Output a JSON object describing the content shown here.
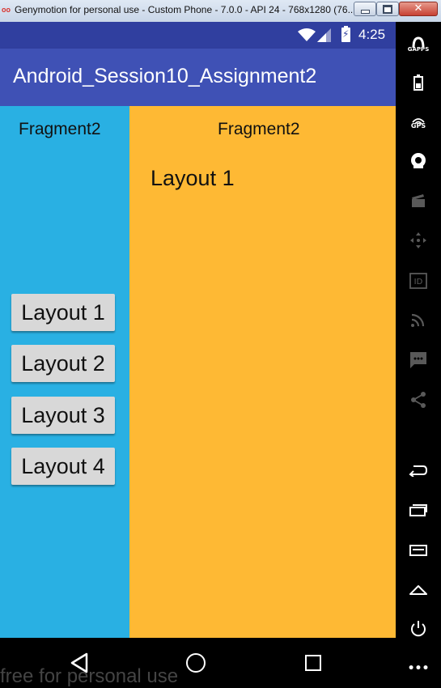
{
  "window": {
    "app_icon": "oo",
    "title": "Genymotion for personal use - Custom Phone - 7.0.0 - API 24 - 768x1280 (76...",
    "minimize_icon": "minimize-icon",
    "maximize_icon": "maximize-icon",
    "close_glyph": "✕"
  },
  "status_bar": {
    "time": "4:25",
    "battery_glyph": "⚡"
  },
  "app_bar": {
    "title": "Android_Session10_Assignment2"
  },
  "left_fragment": {
    "label": "Fragment2",
    "background": "#29b0e3",
    "buttons": [
      {
        "label": "Layout 1"
      },
      {
        "label": "Layout 2"
      },
      {
        "label": "Layout 3"
      },
      {
        "label": "Layout 4"
      }
    ]
  },
  "right_fragment": {
    "label": "Fragment2",
    "layout_text": "Layout 1",
    "background": "#feb934"
  },
  "watermark": "free for personal use",
  "sidebar": {
    "gapps_label": "GAPPS",
    "gps_label": "GPS",
    "more_glyph": "•••"
  },
  "colors": {
    "primary": "#3f51b5",
    "primary_dark": "#303f9f"
  }
}
